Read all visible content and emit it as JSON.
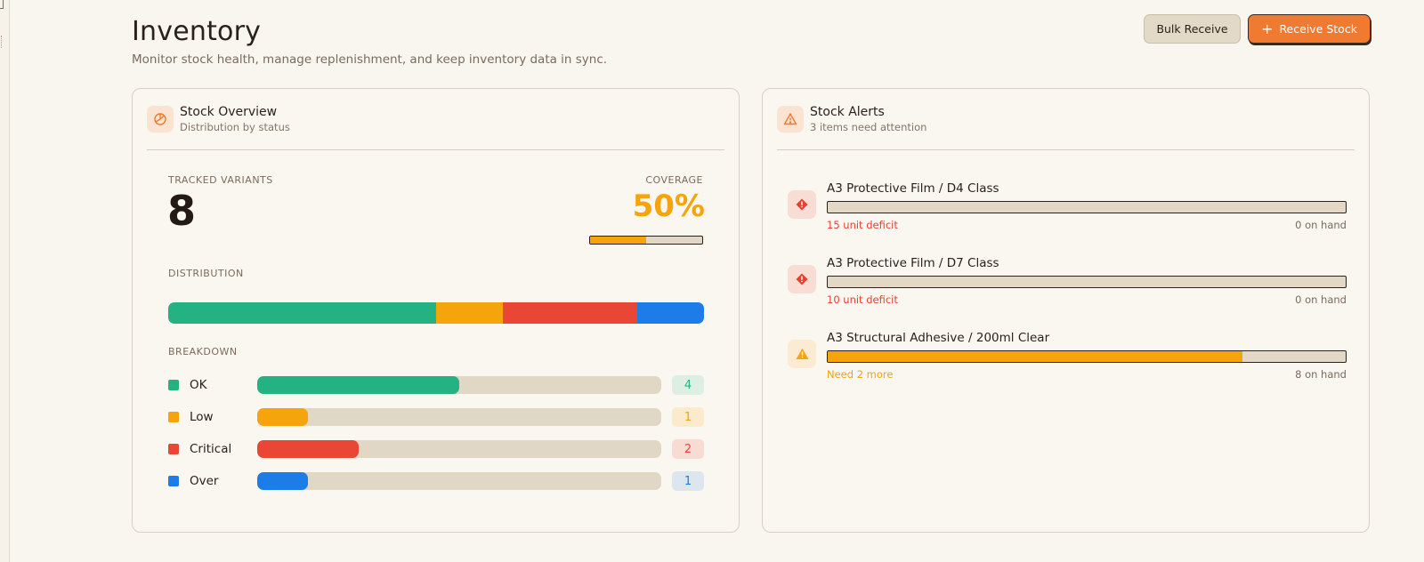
{
  "page": {
    "title": "Inventory",
    "subtitle": "Monitor stock health, manage replenishment, and keep inventory data in sync."
  },
  "actions": {
    "bulk_receive": "Bulk Receive",
    "receive_stock": "Receive Stock",
    "receive_icon": "+"
  },
  "overview": {
    "title": "Stock Overview",
    "subtitle": "Distribution by status",
    "icon": "pie-chart-icon",
    "tracked_label": "TRACKED VARIANTS",
    "tracked_value": "8",
    "coverage_label": "COVERAGE",
    "coverage_value": "50%",
    "coverage_fraction": 0.5,
    "distribution_label": "DISTRIBUTION",
    "breakdown_label": "BREAKDOWN",
    "total": 8,
    "statuses": [
      {
        "name": "OK",
        "count": "4",
        "value": 4,
        "color": "#25b283",
        "chip_bg": "#dcefe2",
        "chip_fg": "#25b283"
      },
      {
        "name": "Low",
        "count": "1",
        "value": 1,
        "color": "#f5a40c",
        "chip_bg": "#fbebcc",
        "chip_fg": "#f5a40c"
      },
      {
        "name": "Critical",
        "count": "2",
        "value": 2,
        "color": "#ea4636",
        "chip_bg": "#f8dcd3",
        "chip_fg": "#ea4636"
      },
      {
        "name": "Over",
        "count": "1",
        "value": 1,
        "color": "#1d7ce8",
        "chip_bg": "#dbe6ef",
        "chip_fg": "#1d7ce8"
      }
    ]
  },
  "alerts": {
    "title": "Stock Alerts",
    "subtitle": "3 items need attention",
    "icon": "warning-triangle-icon",
    "items": [
      {
        "title": "A3 Protective Film / D4 Class",
        "status": "15 unit deficit",
        "on_hand": "0 on hand",
        "level": 0.0,
        "severity": "critical",
        "icon": "critical-diamond-icon",
        "status_color": "#e8402e",
        "icon_bg": "#f8ddd4",
        "icon_color": "#e8402e"
      },
      {
        "title": "A3 Protective Film / D7 Class",
        "status": "10 unit deficit",
        "on_hand": "0 on hand",
        "level": 0.0,
        "severity": "critical",
        "icon": "critical-diamond-icon",
        "status_color": "#e8402e",
        "icon_bg": "#f8ddd4",
        "icon_color": "#e8402e"
      },
      {
        "title": "A3 Structural Adhesive / 200ml Clear",
        "status": "Need 2 more",
        "on_hand": "8 on hand",
        "level": 0.8,
        "severity": "low",
        "icon": "warning-triangle-icon",
        "status_color": "#f5a40c",
        "icon_bg": "#fbebd2",
        "icon_color": "#f5a40c"
      }
    ]
  }
}
